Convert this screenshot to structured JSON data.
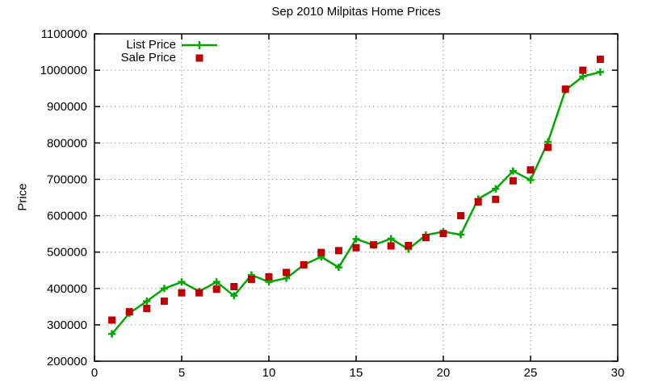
{
  "title": "Sep 2010 Milpitas Home Prices",
  "ylabel": "Price",
  "colors": {
    "list_price": "#00A800",
    "sale_price": "#C00000",
    "grid": "#9a9a9a",
    "frame": "#000000"
  },
  "chart_data": {
    "type": "line",
    "title": "Sep 2010 Milpitas Home Prices",
    "xlabel": "",
    "ylabel": "Price",
    "xlim": [
      0,
      30
    ],
    "ylim": [
      200000,
      1100000
    ],
    "xticks": [
      0,
      5,
      10,
      15,
      20,
      25,
      30
    ],
    "yticks": [
      200000,
      300000,
      400000,
      500000,
      600000,
      700000,
      800000,
      900000,
      1000000,
      1100000
    ],
    "grid": true,
    "legend_position": "top-left-inside",
    "x": [
      1,
      2,
      3,
      4,
      5,
      6,
      7,
      8,
      9,
      10,
      11,
      12,
      13,
      14,
      15,
      16,
      17,
      18,
      19,
      20,
      21,
      22,
      23,
      24,
      25,
      26,
      27,
      28,
      29
    ],
    "series": [
      {
        "name": "List Price",
        "style": "line-with-plus-markers",
        "color": "#00A800",
        "values": [
          275000,
          332000,
          365000,
          400000,
          418000,
          392000,
          418000,
          380000,
          437000,
          418000,
          428000,
          465000,
          487000,
          458000,
          536000,
          519000,
          537000,
          508000,
          547000,
          556000,
          548000,
          646000,
          674000,
          723000,
          698000,
          803000,
          945000,
          983000,
          995000
        ]
      },
      {
        "name": "Sale Price",
        "style": "square-markers",
        "color": "#C00000",
        "values": [
          313000,
          336000,
          345000,
          365000,
          388000,
          388000,
          398000,
          405000,
          425000,
          432000,
          444000,
          465000,
          499000,
          504000,
          512000,
          520000,
          517000,
          518000,
          540000,
          551000,
          600000,
          638000,
          645000,
          696000,
          726000,
          788000,
          948000,
          1000000,
          1030000
        ]
      }
    ]
  }
}
